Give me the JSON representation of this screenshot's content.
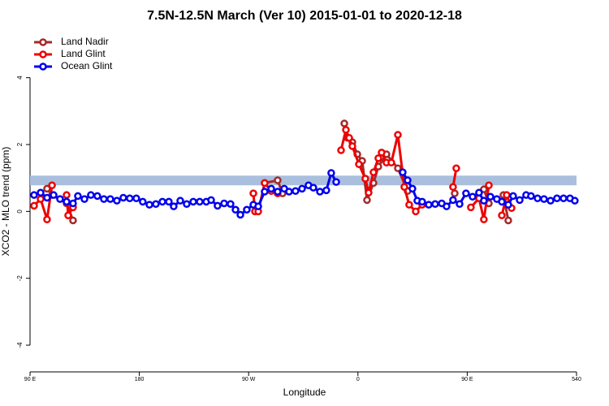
{
  "chart_data": {
    "type": "line",
    "title": "7.5N-12.5N March (Ver 10)   2015-01-01 to 2020-12-18",
    "x_label": "Longitude",
    "y_label": "XCO2 - MLO trend (ppm)",
    "xlim": [
      90,
      540
    ],
    "ylim": [
      -4.8,
      5.4
    ],
    "xticks": [
      {
        "value": 90,
        "label": "90 E"
      },
      180,
      {
        "value": 270,
        "label": "90 W"
      },
      {
        "value": 360,
        "label": "0"
      },
      {
        "value": 450,
        "label": "90 E"
      },
      540
    ],
    "yticks": [
      -4,
      -2,
      0,
      2,
      4
    ],
    "legend": "top-left",
    "band": {
      "range": [
        0.78,
        1.07
      ],
      "color": "#a9bfdd"
    },
    "series": [
      {
        "name": "Land Nadir",
        "color": "#a52a2a",
        "x": [
          104,
          108.1,
          120.1,
          125.4,
          null,
          283.2,
          293.9,
          297.9,
          null,
          348.8,
          351.4,
          355.4,
          359.5,
          363.5,
          367.5,
          372.8,
          376.8,
          383.5,
          392.9,
          400.9,
          null,
          439.7,
          null,
          463.7,
          467.8,
          null,
          479.8,
          483.8
        ],
        "values": [
          0.68,
          0.49,
          0.24,
          -0.27,
          null,
          0.85,
          0.93,
          0.54,
          null,
          2.63,
          2.2,
          2.07,
          1.71,
          1.51,
          0.34,
          0.85,
          1.34,
          1.71,
          1.29,
          0.61,
          null,
          0.54,
          null,
          0.66,
          0.24,
          null,
          0.49,
          -0.27
        ]
      },
      {
        "name": "Land Glint",
        "color": "#ee0000",
        "x": [
          93.3,
          98.7,
          104,
          108.1,
          null,
          120.1,
          121.4,
          125.4,
          null,
          273.9,
          275.2,
          277.9,
          283.2,
          288.6,
          293.9,
          null,
          346.1,
          350.1,
          352.8,
          355.4,
          360.8,
          366.1,
          368.8,
          372.8,
          376.8,
          379.5,
          383.5,
          387.5,
          392.9,
          398.2,
          402.2,
          407.6,
          412.9,
          null,
          438.3,
          441,
          null,
          453,
          459.7,
          463.7,
          467.8,
          null,
          478.5,
          482.5,
          486.5
        ],
        "values": [
          0.17,
          0.37,
          -0.24,
          0.78,
          null,
          0.49,
          -0.12,
          0.12,
          null,
          0.54,
          0.0,
          0.0,
          0.85,
          0.61,
          0.54,
          null,
          1.83,
          2.44,
          2.2,
          1.95,
          1.41,
          0.98,
          0.56,
          1.17,
          1.59,
          1.76,
          1.46,
          1.46,
          2.29,
          0.73,
          0.2,
          0.0,
          0.2,
          null,
          0.73,
          1.29,
          null,
          0.12,
          0.39,
          -0.24,
          0.78,
          null,
          -0.12,
          0.49,
          0.1
        ]
      },
      {
        "name": "Ocean Glint",
        "color": "#0000ee",
        "x": [
          93.3,
          98.7,
          104,
          109.4,
          114.7,
          120.1,
          125.4,
          129.4,
          134.8,
          140.1,
          145.4,
          150.8,
          156.1,
          161.5,
          166.8,
          172.1,
          177.5,
          182.8,
          188.3,
          193.6,
          199,
          204.3,
          208.3,
          213.7,
          219,
          224.4,
          229.7,
          235.1,
          239.1,
          244.4,
          249.8,
          255.1,
          259.2,
          263.2,
          268.5,
          273.9,
          277.9,
          283.2,
          288.6,
          293.9,
          299.3,
          303.3,
          308.6,
          314,
          319.3,
          323.3,
          328.7,
          334,
          338,
          342.1,
          null,
          396.9,
          400.9,
          404.9,
          408.9,
          412.9,
          418.3,
          423.6,
          429,
          433,
          438.3,
          443.7,
          449,
          454.4,
          459.7,
          463.7,
          469.1,
          474.4,
          478.5,
          483.8,
          487.8,
          493.2,
          498.5,
          502.5,
          507.9,
          513.2,
          518.6,
          523.9,
          529.3,
          534.6,
          538.6
        ],
        "values": [
          0.49,
          0.56,
          0.41,
          0.49,
          0.37,
          0.29,
          0.24,
          0.46,
          0.37,
          0.49,
          0.46,
          0.37,
          0.37,
          0.32,
          0.41,
          0.39,
          0.39,
          0.29,
          0.2,
          0.22,
          0.29,
          0.29,
          0.15,
          0.32,
          0.22,
          0.29,
          0.29,
          0.29,
          0.34,
          0.17,
          0.24,
          0.22,
          0.05,
          -0.1,
          0.05,
          0.2,
          0.15,
          0.59,
          0.68,
          0.59,
          0.68,
          0.59,
          0.61,
          0.68,
          0.78,
          0.71,
          0.59,
          0.63,
          1.15,
          0.88,
          null,
          1.17,
          0.93,
          0.68,
          0.32,
          0.29,
          0.2,
          0.22,
          0.24,
          0.15,
          0.34,
          0.22,
          0.54,
          0.44,
          0.56,
          0.32,
          0.44,
          0.37,
          0.29,
          0.2,
          0.46,
          0.34,
          0.49,
          0.46,
          0.39,
          0.37,
          0.32,
          0.39,
          0.39,
          0.39,
          0.32
        ]
      }
    ]
  }
}
